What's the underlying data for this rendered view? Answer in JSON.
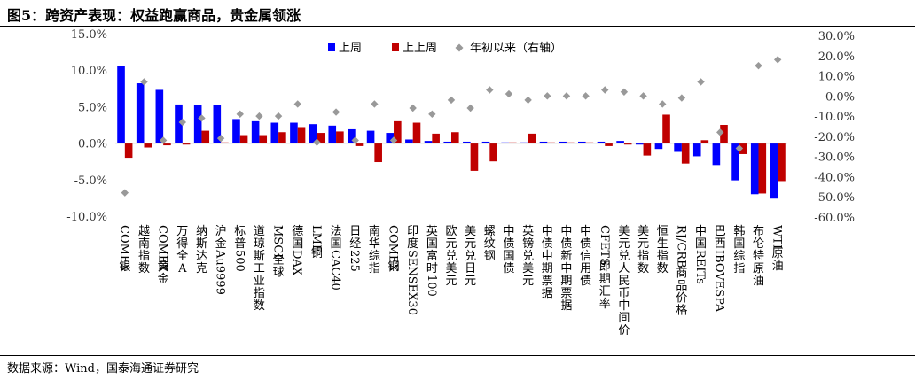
{
  "header": {
    "title": "图5：跨资产表现：权益跑赢商品，贵金属领涨"
  },
  "footer": {
    "source": "数据来源：Wind，国泰海通证券研究"
  },
  "colors": {
    "last_week": "#0000ff",
    "prev_week": "#c00000",
    "ytd": "#999999"
  },
  "chart_data": {
    "type": "bar",
    "categories": [
      "COMEX银",
      "越南指数",
      "COMEX黄金",
      "万得全A",
      "纳斯达克",
      "沪金Au9999",
      "标普500",
      "道琼斯工业指数",
      "MSCI全球",
      "德国DAX",
      "LME铜",
      "法国CAC40",
      "日经225",
      "南华综指",
      "COMEX铜",
      "印度SENSEX30",
      "英国富时100",
      "欧元兑美元",
      "美元兑日元",
      "螺纹钢",
      "中债国债",
      "英镑兑美元",
      "中债中期票据",
      "中债新中期票据",
      "中债信用债",
      "CFETS即期汇率",
      "美元兑人民币中间价",
      "美元指数",
      "恒生指数",
      "RJ/CRB商品价格",
      "中国REITs",
      "巴西IBOVESPA",
      "韩国综指",
      "布伦特原油",
      "WTI原油"
    ],
    "series": [
      {
        "name": "上周",
        "axis": "left",
        "values": [
          10.6,
          8.2,
          7.3,
          5.3,
          5.2,
          5.2,
          3.3,
          3.0,
          2.8,
          2.8,
          2.6,
          2.4,
          1.9,
          1.7,
          1.4,
          0.5,
          0.3,
          0.2,
          0.2,
          0.2,
          0.1,
          0.1,
          0.2,
          0.2,
          0.2,
          0.2,
          0.3,
          -0.2,
          -0.8,
          -1.2,
          -1.8,
          -3.0,
          -5.1,
          -7.0,
          -7.6
        ]
      },
      {
        "name": "上上周",
        "axis": "left",
        "values": [
          -2.0,
          -0.6,
          -0.3,
          -0.2,
          1.7,
          0.1,
          1.1,
          1.1,
          1.5,
          2.2,
          1.4,
          1.6,
          -0.4,
          -2.6,
          3.0,
          2.8,
          1.3,
          1.5,
          -3.8,
          -2.5,
          0.1,
          1.3,
          0.1,
          0.1,
          0.1,
          -0.4,
          -0.2,
          -1.7,
          3.9,
          -2.8,
          0.4,
          2.5,
          -1.5,
          -6.9,
          -5.2
        ]
      },
      {
        "name": "年初以来（右轴）",
        "axis": "right",
        "values": [
          -48,
          7,
          -22,
          -13,
          -11,
          -21,
          -9,
          -10,
          -10,
          -4,
          -23,
          -8,
          -22,
          -4,
          -22,
          -6,
          -9,
          -2,
          -6,
          3,
          1,
          -2,
          0,
          0,
          0,
          3,
          2,
          0,
          -4,
          -1,
          7,
          -18,
          -26,
          15,
          18
        ]
      }
    ],
    "left_axis": {
      "ylim": [
        -10.0,
        15.0
      ],
      "ticks": [
        "15.0%",
        "10.0%",
        "5.0%",
        "0.0%",
        "-5.0%",
        "-10.0%"
      ]
    },
    "right_axis": {
      "ylim": [
        -60.0,
        30.0
      ],
      "ticks": [
        "30.0%",
        "20.0%",
        "10.0%",
        "0.0%",
        "-10.0%",
        "-20.0%",
        "-30.0%",
        "-40.0%",
        "-50.0%",
        "-60.0%"
      ]
    },
    "grid": false,
    "legend_position": "top"
  }
}
